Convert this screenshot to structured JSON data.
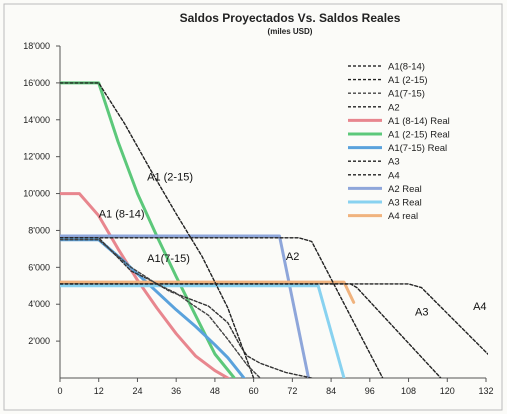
{
  "chart_data": {
    "type": "line",
    "title": "Saldos Proyectados Vs. Saldos Reales",
    "subtitle": "(miles USD)",
    "xlabel": "",
    "ylabel": "",
    "xlim": [
      0,
      132
    ],
    "ylim": [
      0,
      18000
    ],
    "grid": false,
    "legend_position": "top-right",
    "x_ticks": [
      0,
      12,
      24,
      36,
      48,
      60,
      72,
      84,
      96,
      108,
      120,
      132
    ],
    "x_tick_labels": [
      "0",
      "12",
      "24",
      "36",
      "48",
      "60",
      "72",
      "84",
      "96",
      "108",
      "120",
      "132"
    ],
    "y_ticks": [
      2000,
      4000,
      6000,
      8000,
      10000,
      12000,
      14000,
      16000,
      18000
    ],
    "y_tick_labels": [
      "2'000",
      "4'000",
      "6'000",
      "8'000",
      "10'000",
      "12'000",
      "14'000",
      "16'000",
      "18'000"
    ],
    "series": [
      {
        "name": "A1(8-14)",
        "style": "dashed",
        "color": "#333333",
        "x": [
          0,
          12,
          22,
          28,
          34,
          40,
          46,
          52,
          56,
          58,
          62,
          70,
          78
        ],
        "y": [
          7600,
          7600,
          5800,
          5300,
          4700,
          4300,
          3900,
          3000,
          1700,
          1200,
          800,
          300,
          0
        ]
      },
      {
        "name": "A1 (2-15)",
        "style": "dashed",
        "color": "#222222",
        "x": [
          0,
          12,
          20,
          28,
          36,
          44,
          52,
          60
        ],
        "y": [
          16000,
          16000,
          13800,
          11300,
          8900,
          6600,
          3800,
          0
        ]
      },
      {
        "name": "A1(7-15)",
        "style": "dashed",
        "color": "#444444",
        "x": [
          0,
          12,
          22,
          30,
          36,
          40,
          46,
          52,
          58,
          62
        ],
        "y": [
          7500,
          7500,
          6000,
          5100,
          4600,
          4100,
          3400,
          2100,
          700,
          0
        ]
      },
      {
        "name": "A2",
        "style": "dashed",
        "color": "#222222",
        "x": [
          0,
          74,
          78,
          100
        ],
        "y": [
          7600,
          7600,
          7400,
          0
        ]
      },
      {
        "name": "A1 (8-14) Real",
        "style": "solid",
        "color": "#e8868e",
        "x": [
          0,
          6,
          12,
          18,
          24,
          30,
          36,
          42,
          48,
          52
        ],
        "y": [
          10000,
          10000,
          8800,
          7000,
          5300,
          3800,
          2400,
          1200,
          400,
          0
        ]
      },
      {
        "name": "A1 (2-15) Real",
        "style": "solid",
        "color": "#5cc87a",
        "x": [
          0,
          12,
          18,
          24,
          30,
          36,
          42,
          48,
          54
        ],
        "y": [
          16000,
          16000,
          12800,
          10000,
          7700,
          5500,
          3400,
          1300,
          0
        ]
      },
      {
        "name": "A1(7-15) Real",
        "style": "solid",
        "color": "#5aa2dc",
        "x": [
          0,
          12,
          20,
          28,
          36,
          42,
          48,
          52,
          57
        ],
        "y": [
          7500,
          7500,
          6300,
          5000,
          3700,
          2800,
          1800,
          1100,
          0
        ]
      },
      {
        "name": "A3",
        "style": "dashed",
        "color": "#222222",
        "x": [
          0,
          90,
          92,
          118
        ],
        "y": [
          5100,
          5100,
          4900,
          0
        ]
      },
      {
        "name": "A4",
        "style": "dashed",
        "color": "#222222",
        "x": [
          0,
          108,
          112,
          140
        ],
        "y": [
          5100,
          5100,
          4900,
          0
        ]
      },
      {
        "name": "A2 Real",
        "style": "solid",
        "color": "#8ea6da",
        "x": [
          0,
          68,
          77
        ],
        "y": [
          7700,
          7700,
          0
        ]
      },
      {
        "name": "A3 Real",
        "style": "solid",
        "color": "#88d2f0",
        "x": [
          0,
          80,
          88
        ],
        "y": [
          5000,
          5000,
          0
        ]
      },
      {
        "name": "A4 real",
        "style": "solid",
        "color": "#f0b37e",
        "x": [
          0,
          88,
          91
        ],
        "y": [
          5200,
          5200,
          4100
        ]
      }
    ],
    "annotations": [
      {
        "text": "A1 (2-15)",
        "x": 27,
        "y": 10700
      },
      {
        "text": "A1 (8-14)",
        "x": 12,
        "y": 8700
      },
      {
        "text": "A1(7-15)",
        "x": 27,
        "y": 6300
      },
      {
        "text": "A2",
        "x": 70,
        "y": 6400
      },
      {
        "text": "A3",
        "x": 110,
        "y": 3400
      },
      {
        "text": "A4",
        "x": 128,
        "y": 3700
      }
    ]
  }
}
